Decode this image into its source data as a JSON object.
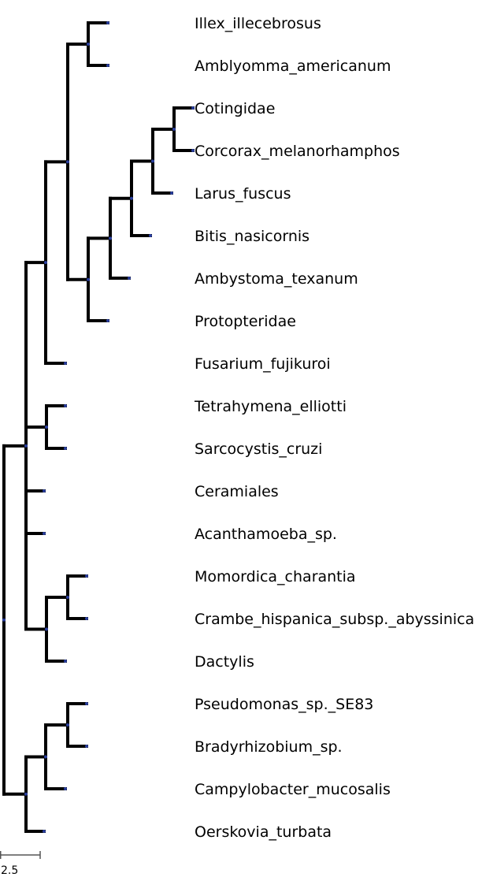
{
  "tree": {
    "leaves": [
      "Illex_illecebrosus",
      "Amblyomma_americanum",
      "Cotingidae",
      "Corcorax_melanorhamphos",
      "Larus_fuscus",
      "Bitis_nasicornis",
      "Ambystoma_texanum",
      "Protopteridae",
      "Fusarium_fujikuroi",
      "Tetrahymena_elliotti",
      "Sarcocystis_cruzi",
      "Ceramiales",
      "Acanthamoeba_sp.",
      "Momordica_charantia",
      "Crambe_hispanica_subsp._abyssinica",
      "Dactylis",
      "Pseudomonas_sp._SE83",
      "Bradyrhizobium_sp.",
      "Campylobacter_mucosalis",
      "Oerskovia_turbata"
    ],
    "scale_bar": {
      "label": "2.5"
    },
    "colors": {
      "branch": "#000000",
      "node": "#2a3f9d"
    }
  }
}
